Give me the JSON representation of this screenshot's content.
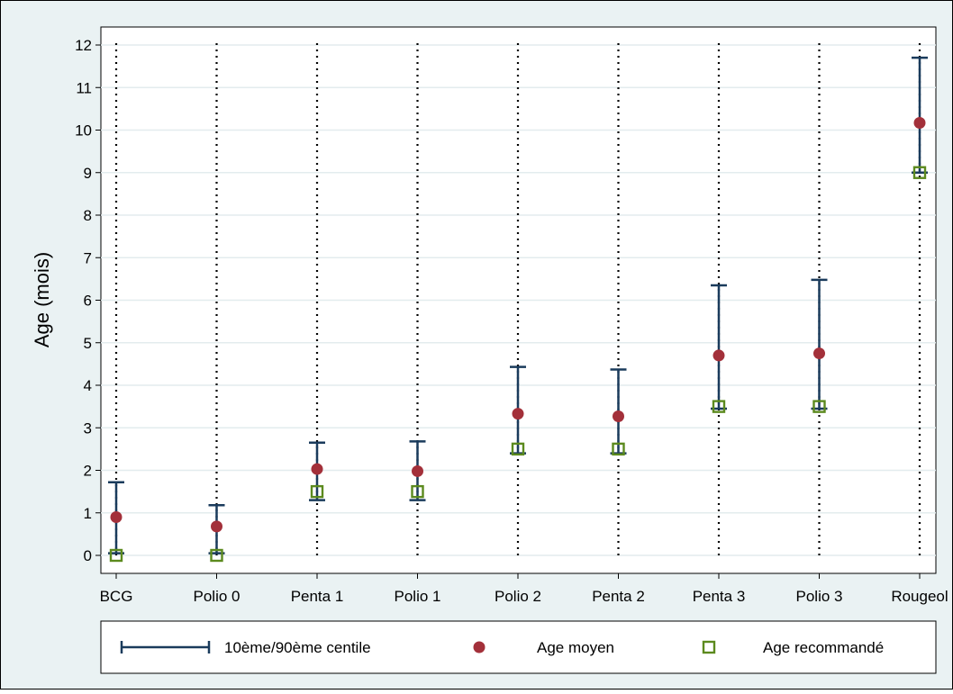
{
  "colors": {
    "frame_bg": "#eaf2f3",
    "plot_bg": "#ffffff",
    "gridline": "#e3ecee",
    "spike": "#1a3b5c",
    "mean_marker": "#a3303a",
    "recommended_marker": "#5c8a1e"
  },
  "chart_data": {
    "type": "range-dot",
    "ylabel": "Age (mois)",
    "ylim": [
      0,
      12
    ],
    "yticks": [
      "0",
      "1",
      "2",
      "3",
      "4",
      "5",
      "6",
      "7",
      "8",
      "9",
      "10",
      "11",
      "12"
    ],
    "grid": true,
    "legend_position": "bottom",
    "categories": [
      "BCG",
      "Polio 0",
      "Penta 1",
      "Polio 1",
      "Polio 2",
      "Penta 2",
      "Penta 3",
      "Polio 3",
      "Rougeol"
    ],
    "series": [
      {
        "name": "10ème/90ème centile",
        "kind": "range",
        "low": [
          0.05,
          0.05,
          1.3,
          1.3,
          2.4,
          2.4,
          3.45,
          3.45,
          9.0
        ],
        "high": [
          1.72,
          1.18,
          2.65,
          2.68,
          4.43,
          4.37,
          6.35,
          6.48,
          11.7
        ]
      },
      {
        "name": "Age moyen",
        "kind": "point",
        "values": [
          0.9,
          0.68,
          2.03,
          1.98,
          3.33,
          3.27,
          4.7,
          4.75,
          10.17
        ]
      },
      {
        "name": "Age recommandé",
        "kind": "point",
        "values": [
          0,
          0,
          1.5,
          1.5,
          2.5,
          2.5,
          3.5,
          3.5,
          9
        ]
      }
    ]
  }
}
